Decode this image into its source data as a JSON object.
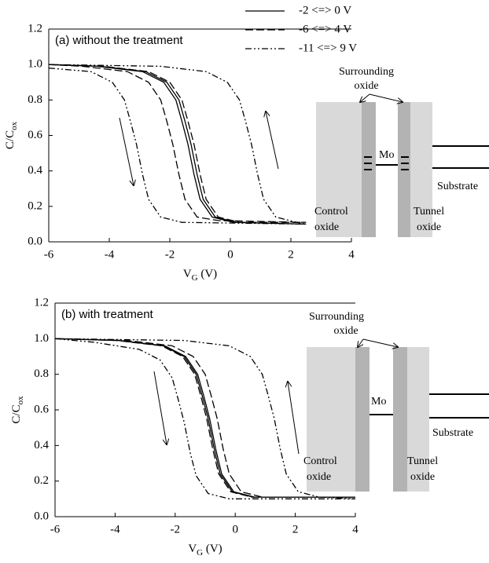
{
  "chart_data": [
    {
      "type": "line",
      "title": "(a) without the treatment",
      "title_color": "#0000ff",
      "x_label": {
        "main": "V",
        "sub": "G",
        "rest": " (V)"
      },
      "y_label": {
        "main": "C/C",
        "sub": "ox"
      },
      "xlim": [
        -6,
        4
      ],
      "xticks": [
        -6,
        -4,
        -2,
        0,
        2,
        4
      ],
      "ylim": [
        0,
        1.2
      ],
      "yticks": [
        {
          "value": 0,
          "label": "0.0"
        },
        0.2,
        0.4,
        0.6,
        0.8,
        {
          "value": 1,
          "label": "1.0"
        },
        1.2
      ],
      "legend": true,
      "series": [
        {
          "name": "-2 <=> 0 V",
          "color": "#000000",
          "line_style": "solid",
          "x": [
            -6,
            -4.4,
            -2.9,
            -2.2,
            -1.8,
            -1.6,
            -1.4,
            -1.2,
            -1.0,
            -0.6,
            0.1,
            2.5,
            0.2,
            -0.5,
            -0.9,
            -1.1,
            -1.3,
            -1.5,
            -1.7,
            -2.1,
            -2.8,
            -4.3,
            -6
          ],
          "values": [
            1.0,
            0.99,
            0.96,
            0.9,
            0.8,
            0.68,
            0.55,
            0.38,
            0.24,
            0.14,
            0.11,
            0.1,
            0.11,
            0.14,
            0.24,
            0.38,
            0.55,
            0.68,
            0.8,
            0.9,
            0.96,
            0.99,
            1.0
          ]
        },
        {
          "name": "-6 <=> 4 V",
          "color": "#000000",
          "line_style": "dashed",
          "x": [
            -6,
            -4.9,
            -3.4,
            -2.7,
            -2.3,
            -2.1,
            -1.9,
            -1.7,
            -1.5,
            -1.1,
            -0.4,
            2.5,
            0.3,
            -0.4,
            -0.8,
            -1.0,
            -1.2,
            -1.4,
            -1.6,
            -2.0,
            -2.7,
            -4.2,
            -6
          ],
          "values": [
            1.0,
            0.99,
            0.96,
            0.9,
            0.8,
            0.68,
            0.55,
            0.38,
            0.24,
            0.14,
            0.12,
            0.11,
            0.11,
            0.14,
            0.24,
            0.38,
            0.55,
            0.68,
            0.8,
            0.9,
            0.96,
            0.99,
            1.0
          ]
        },
        {
          "name": "-11 <=> 9 V",
          "color": "#000000",
          "line_style": "dashdotdot",
          "x": [
            -6,
            -4.6,
            -3.9,
            -3.5,
            -3.3,
            -3.1,
            -2.9,
            -2.7,
            -2.3,
            -1.6,
            2.5,
            2.2,
            1.5,
            1.1,
            0.9,
            0.7,
            0.5,
            0.3,
            -0.1,
            -0.8,
            -2.3,
            -6
          ],
          "values": [
            0.98,
            0.96,
            0.9,
            0.8,
            0.68,
            0.55,
            0.38,
            0.24,
            0.14,
            0.11,
            0.1,
            0.11,
            0.14,
            0.24,
            0.38,
            0.55,
            0.68,
            0.8,
            0.9,
            0.96,
            0.99,
            1.0
          ]
        }
      ],
      "annotations": {
        "surrounding": [
          "Surrounding",
          "oxide"
        ],
        "mo": "Mo",
        "substrate": "Substrate",
        "control": [
          "Control",
          "oxide"
        ],
        "tunnel": [
          "Tunnel",
          "oxide"
        ]
      }
    },
    {
      "type": "line",
      "title": "(b) with treatment",
      "title_color": "#ff0000",
      "x_label": {
        "main": "V",
        "sub": "G",
        "rest": " (V)"
      },
      "y_label": {
        "main": "C/C",
        "sub": "ox"
      },
      "xlim": [
        -6,
        4
      ],
      "xticks": [
        -6,
        -4,
        -2,
        0,
        2,
        4
      ],
      "ylim": [
        0,
        1.2
      ],
      "yticks": [
        {
          "value": 0,
          "label": "0.0"
        },
        0.2,
        0.4,
        0.6,
        0.8,
        {
          "value": 1,
          "label": "1.0"
        },
        1.2
      ],
      "legend": false,
      "series": [
        {
          "color": "#000000",
          "line_style": "solid",
          "x": [
            -6,
            -3.9,
            -2.4,
            -1.7,
            -1.3,
            -1.1,
            -0.9,
            -0.7,
            -0.5,
            -0.1,
            0.6,
            4,
            0.65,
            -0.05,
            -0.45,
            -0.65,
            -0.85,
            -1.05,
            -1.25,
            -1.65,
            -2.35,
            -3.85,
            -6
          ],
          "values": [
            1.0,
            0.99,
            0.96,
            0.9,
            0.8,
            0.68,
            0.55,
            0.38,
            0.24,
            0.14,
            0.11,
            0.11,
            0.11,
            0.14,
            0.24,
            0.38,
            0.55,
            0.68,
            0.8,
            0.9,
            0.96,
            0.99,
            1.0
          ]
        },
        {
          "color": "#000000",
          "line_style": "dashed",
          "x": [
            -6,
            -3.95,
            -2.45,
            -1.75,
            -1.35,
            -1.15,
            -0.95,
            -0.75,
            -0.55,
            -0.15,
            0.55,
            4,
            0.9,
            0.2,
            -0.2,
            -0.4,
            -0.6,
            -0.8,
            -1.0,
            -1.4,
            -2.1,
            -3.6,
            -6
          ],
          "values": [
            1.0,
            0.99,
            0.96,
            0.9,
            0.8,
            0.68,
            0.55,
            0.38,
            0.24,
            0.14,
            0.11,
            0.11,
            0.11,
            0.14,
            0.24,
            0.38,
            0.55,
            0.68,
            0.8,
            0.9,
            0.96,
            0.99,
            1.0
          ]
        },
        {
          "color": "#000000",
          "line_style": "dashdotdot",
          "x": [
            -6,
            -4.7,
            -3.2,
            -2.5,
            -2.1,
            -1.9,
            -1.7,
            -1.5,
            -1.3,
            -0.9,
            -0.2,
            4,
            2.8,
            2.1,
            1.7,
            1.5,
            1.3,
            1.1,
            0.9,
            0.5,
            -0.2,
            -1.7,
            -6
          ],
          "values": [
            1.0,
            0.98,
            0.94,
            0.88,
            0.78,
            0.66,
            0.53,
            0.36,
            0.23,
            0.13,
            0.1,
            0.1,
            0.11,
            0.14,
            0.24,
            0.38,
            0.55,
            0.68,
            0.8,
            0.9,
            0.96,
            0.99,
            1.0
          ]
        }
      ],
      "annotations": {
        "surrounding": [
          "Surrounding",
          "oxide"
        ],
        "mo": "Mo",
        "substrate": "Substrate",
        "control": [
          "Control",
          "oxide"
        ],
        "tunnel": [
          "Tunnel",
          "oxide"
        ]
      }
    }
  ]
}
